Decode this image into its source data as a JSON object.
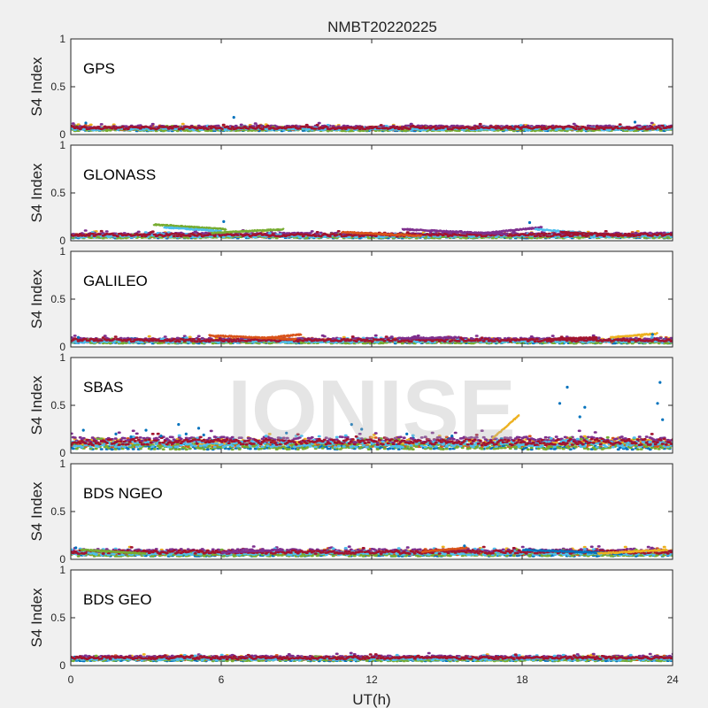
{
  "figure": {
    "title": "NMBT20220225",
    "watermark": "IONISE",
    "xlabel": "UT(h)",
    "xticks": [
      "0",
      "6",
      "12",
      "18",
      "24"
    ],
    "xlim": [
      0,
      24
    ],
    "background": "#f0f0f0",
    "axes_bg": "#ffffff",
    "series_colors": [
      "#0072BD",
      "#D95319",
      "#EDB120",
      "#7E2F8E",
      "#77AC30",
      "#4DBEEE",
      "#A2142F"
    ]
  },
  "chart_data": [
    {
      "type": "scatter",
      "name": "GPS",
      "ylabel": "S4 Index",
      "ylim": [
        0,
        1
      ],
      "yticks": [
        "0",
        "0.5",
        "1"
      ],
      "typical_values": [
        0.05,
        0.08
      ],
      "notable_points": [
        {
          "x": 6.5,
          "y": 0.18
        },
        {
          "x": 0.6,
          "y": 0.12
        },
        {
          "x": 22.5,
          "y": 0.13
        }
      ],
      "arcs": []
    },
    {
      "type": "scatter",
      "name": "GLONASS",
      "ylabel": "S4 Index",
      "ylim": [
        0,
        1
      ],
      "yticks": [
        "0",
        "0.5",
        "1"
      ],
      "typical_values": [
        0.04,
        0.07
      ],
      "notable_points": [
        {
          "x": 18.3,
          "y": 0.19
        },
        {
          "x": 6.1,
          "y": 0.2
        }
      ],
      "arcs": [
        {
          "x0": 3.3,
          "x1": 6.2,
          "y0": 0.17,
          "y1": 0.12,
          "color": 4
        },
        {
          "x0": 3.7,
          "x1": 6.0,
          "y0": 0.14,
          "y1": 0.1,
          "color": 5
        },
        {
          "x0": 5.6,
          "x1": 8.5,
          "y0": 0.08,
          "y1": 0.12,
          "color": 4
        },
        {
          "x0": 13.2,
          "x1": 17.4,
          "y0": 0.12,
          "y1": 0.07,
          "color": 3
        },
        {
          "x0": 10.8,
          "x1": 14.0,
          "y0": 0.09,
          "y1": 0.05,
          "color": 1
        },
        {
          "x0": 16.5,
          "x1": 18.8,
          "y0": 0.08,
          "y1": 0.14,
          "color": 3
        },
        {
          "x0": 18.5,
          "x1": 21.0,
          "y0": 0.12,
          "y1": 0.07,
          "color": 5
        },
        {
          "x0": 19.5,
          "x1": 22.5,
          "y0": 0.09,
          "y1": 0.05,
          "color": 6
        }
      ]
    },
    {
      "type": "scatter",
      "name": "GALILEO",
      "ylabel": "S4 Index",
      "ylim": [
        0,
        1
      ],
      "yticks": [
        "0",
        "0.5",
        "1"
      ],
      "typical_values": [
        0.05,
        0.08
      ],
      "notable_points": [
        {
          "x": 0.3,
          "y": 0.1
        },
        {
          "x": 23.2,
          "y": 0.13
        }
      ],
      "arcs": [
        {
          "x0": 5.5,
          "x1": 9.0,
          "y0": 0.12,
          "y1": 0.08,
          "color": 1
        },
        {
          "x0": 7.6,
          "x1": 9.2,
          "y0": 0.09,
          "y1": 0.13,
          "color": 1
        },
        {
          "x0": 13.0,
          "x1": 15.5,
          "y0": 0.09,
          "y1": 0.1,
          "color": 3
        },
        {
          "x0": 19.0,
          "x1": 21.0,
          "y0": 0.08,
          "y1": 0.1,
          "color": 6
        },
        {
          "x0": 21.5,
          "x1": 23.4,
          "y0": 0.1,
          "y1": 0.14,
          "color": 2
        }
      ]
    },
    {
      "type": "scatter",
      "name": "SBAS",
      "ylabel": "S4 Index",
      "ylim": [
        0,
        1
      ],
      "yticks": [
        "0",
        "0.5",
        "1"
      ],
      "typical_values": [
        0.07,
        0.14
      ],
      "notable_points": [
        {
          "x": 0.5,
          "y": 0.24
        },
        {
          "x": 1.8,
          "y": 0.2
        },
        {
          "x": 2.4,
          "y": 0.17
        },
        {
          "x": 3.0,
          "y": 0.24
        },
        {
          "x": 3.6,
          "y": 0.18
        },
        {
          "x": 4.3,
          "y": 0.3
        },
        {
          "x": 4.6,
          "y": 0.2
        },
        {
          "x": 5.1,
          "y": 0.26
        },
        {
          "x": 5.3,
          "y": 0.19
        },
        {
          "x": 8.6,
          "y": 0.21
        },
        {
          "x": 11.2,
          "y": 0.3
        },
        {
          "x": 11.6,
          "y": 0.25
        },
        {
          "x": 13.4,
          "y": 0.2
        },
        {
          "x": 15.2,
          "y": 0.18
        },
        {
          "x": 19.5,
          "y": 0.52
        },
        {
          "x": 19.8,
          "y": 0.69
        },
        {
          "x": 20.3,
          "y": 0.38
        },
        {
          "x": 20.5,
          "y": 0.48
        },
        {
          "x": 23.4,
          "y": 0.52
        },
        {
          "x": 23.5,
          "y": 0.74
        },
        {
          "x": 23.6,
          "y": 0.35
        }
      ],
      "arcs": [
        {
          "x0": 16.8,
          "x1": 17.9,
          "y0": 0.15,
          "y1": 0.4,
          "color": 2
        }
      ]
    },
    {
      "type": "scatter",
      "name": "BDS NGEO",
      "ylabel": "S4 Index",
      "ylim": [
        0,
        1
      ],
      "yticks": [
        "0",
        "0.5",
        "1"
      ],
      "typical_values": [
        0.05,
        0.09
      ],
      "notable_points": [
        {
          "x": 15.7,
          "y": 0.14
        },
        {
          "x": 0.2,
          "y": 0.12
        }
      ],
      "arcs": [
        {
          "x0": 0.4,
          "x1": 3.0,
          "y0": 0.1,
          "y1": 0.06,
          "color": 4
        },
        {
          "x0": 6.0,
          "x1": 8.5,
          "y0": 0.07,
          "y1": 0.1,
          "color": 3
        },
        {
          "x0": 14.0,
          "x1": 15.8,
          "y0": 0.08,
          "y1": 0.12,
          "color": 1
        },
        {
          "x0": 18.0,
          "x1": 22.0,
          "y0": 0.1,
          "y1": 0.06,
          "color": 0
        },
        {
          "x0": 21.0,
          "x1": 23.8,
          "y0": 0.06,
          "y1": 0.1,
          "color": 2
        }
      ]
    },
    {
      "type": "scatter",
      "name": "BDS GEO",
      "ylabel": "S4 Index",
      "ylim": [
        0,
        1
      ],
      "yticks": [
        "0",
        "0.5",
        "1"
      ],
      "typical_values": [
        0.06,
        0.09
      ],
      "notable_points": [],
      "arcs": []
    }
  ]
}
